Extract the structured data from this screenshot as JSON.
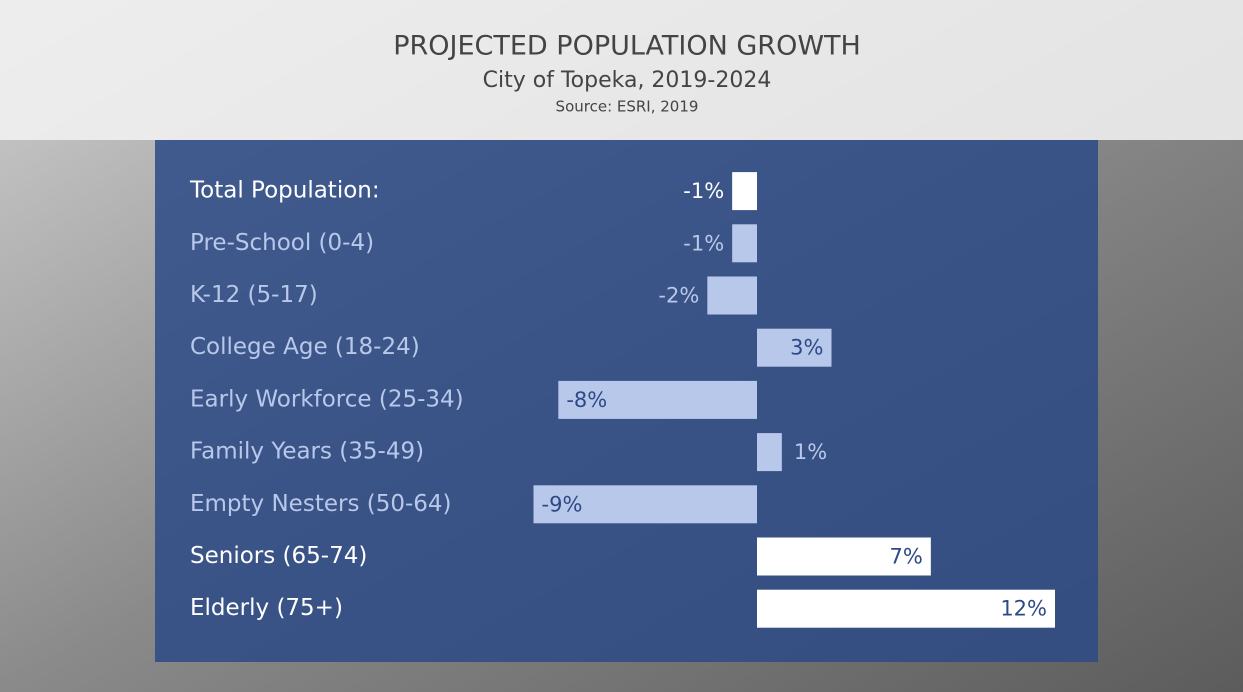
{
  "chart_data": {
    "type": "bar",
    "orientation": "horizontal",
    "title": "PROJECTED POPULATION GROWTH",
    "subtitle": "City of Topeka, 2019-2024",
    "source": "Source: ESRI, 2019",
    "categories": [
      "Total Population:",
      "Pre-School (0-4)",
      "K-12 (5-17)",
      "College Age (18-24)",
      "Early Workforce (25-34)",
      "Family Years (35-49)",
      "Empty Nesters (50-64)",
      "Seniors (65-74)",
      "Elderly (75+)"
    ],
    "values": [
      -1,
      -1,
      -2,
      3,
      -8,
      1,
      -9,
      7,
      12
    ],
    "value_labels": [
      "-1%",
      "-1%",
      "-2%",
      "3%",
      "-8%",
      "1%",
      "-9%",
      "7%",
      "12%"
    ],
    "colors": [
      "#ffffff",
      "#b8c8ea",
      "#b8c8ea",
      "#b8c8ea",
      "#b8c8ea",
      "#b8c8ea",
      "#b8c8ea",
      "#ffffff",
      "#ffffff"
    ]
  }
}
